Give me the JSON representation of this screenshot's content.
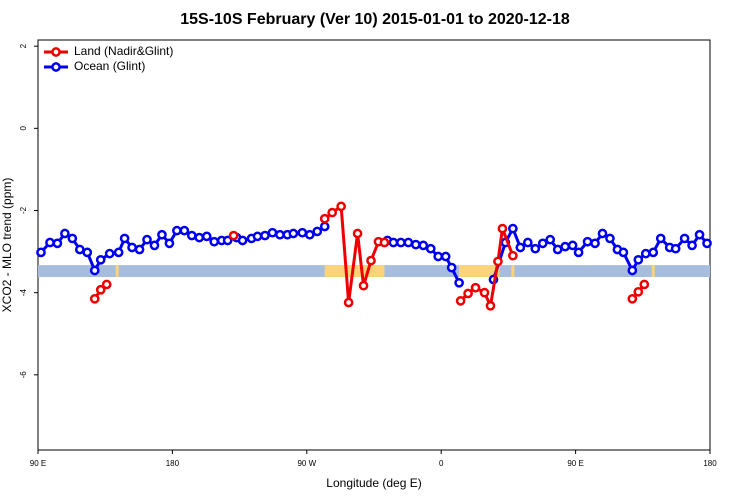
{
  "chart_data": {
    "type": "line",
    "title": "15S-10S February (Ver 10)   2015-01-01 to 2020-12-18",
    "x_label": "Longitude (deg E)",
    "y_label": "XCO2 - MLO trend (ppm)",
    "xlim": [
      90,
      540
    ],
    "ylim": [
      -7.83,
      2.15
    ],
    "xticks": [
      {
        "value": 90,
        "label": "90 E"
      },
      180,
      {
        "value": 270,
        "label": "90 W"
      },
      {
        "value": 360,
        "label": "0"
      },
      {
        "value": 450,
        "label": "90 E"
      },
      {
        "value": 540,
        "label": "180"
      }
    ],
    "yticks": [
      -6,
      -4,
      -2,
      0,
      2
    ],
    "legend": "top-left",
    "mask": {
      "ylim": [
        -3.62,
        -3.33
      ],
      "ocean_color": "#a6bddd",
      "land_color": "#fbd47a",
      "land": [
        [
          142,
          144
        ],
        [
          282,
          322
        ],
        [
          372,
          399
        ],
        [
          407,
          409
        ],
        [
          501,
          503
        ]
      ]
    },
    "series": [
      {
        "name": "Ocean (Glint)",
        "color": "#0000ee",
        "x": [
          92,
          98,
          103,
          108,
          113,
          118,
          123,
          128,
          132,
          138,
          144,
          148,
          153,
          158,
          163,
          168,
          173,
          178,
          183,
          188,
          193,
          198,
          203,
          208,
          213,
          217,
          223,
          227,
          233,
          237,
          242,
          247,
          252,
          257,
          261,
          267,
          272,
          277,
          282,
          null,
          324,
          328,
          333,
          338,
          343,
          348,
          353,
          358,
          363,
          367,
          372,
          null,
          395,
          403,
          408,
          413,
          418,
          423,
          428,
          433,
          438,
          443,
          448,
          452,
          458,
          463,
          468,
          473,
          478,
          482,
          488,
          492,
          497,
          502,
          507,
          513,
          517,
          523,
          528,
          533,
          538
        ],
        "values": [
          -3.02,
          -2.78,
          -2.8,
          -2.56,
          -2.68,
          -2.95,
          -3.02,
          -3.46,
          -3.2,
          -3.05,
          -3.02,
          -2.68,
          -2.9,
          -2.95,
          -2.71,
          -2.85,
          -2.59,
          -2.8,
          -2.49,
          -2.49,
          -2.61,
          -2.66,
          -2.63,
          -2.76,
          -2.73,
          -2.73,
          -2.66,
          -2.73,
          -2.68,
          -2.63,
          -2.61,
          -2.54,
          -2.59,
          -2.59,
          -2.56,
          -2.54,
          -2.59,
          -2.51,
          -2.39,
          null,
          -2.73,
          -2.78,
          -2.78,
          -2.78,
          -2.83,
          -2.85,
          -2.93,
          -3.12,
          -3.12,
          -3.39,
          -3.76,
          null,
          -3.68,
          -2.78,
          -2.44,
          -2.9,
          -2.78,
          -2.93,
          -2.8,
          -2.71,
          -2.95,
          -2.88,
          -2.85,
          -3.02,
          -2.76,
          -2.8,
          -2.56,
          -2.68,
          -2.95,
          -3.02,
          -3.46,
          -3.2,
          -3.05,
          -3.02,
          -2.68,
          -2.9,
          -2.93,
          -2.68,
          -2.85,
          -2.59,
          -2.8
        ]
      },
      {
        "name": "Land (Nadir&Glint)",
        "color": "#ee0000",
        "x": [
          128,
          132,
          136,
          null,
          221,
          null,
          282,
          287,
          293,
          298,
          304,
          308,
          313,
          318,
          322,
          null,
          373,
          378,
          383,
          389,
          393,
          398,
          401,
          408,
          null,
          488,
          492,
          496
        ],
        "values": [
          -4.15,
          -3.93,
          -3.8,
          null,
          -2.61,
          null,
          -2.2,
          -2.05,
          -1.9,
          -4.24,
          -2.56,
          -3.83,
          -3.22,
          -2.76,
          -2.78,
          null,
          -4.2,
          -4.02,
          -3.88,
          -4.0,
          -4.32,
          -3.24,
          -2.44,
          -3.1,
          null,
          -4.15,
          -3.98,
          -3.8
        ]
      }
    ]
  }
}
